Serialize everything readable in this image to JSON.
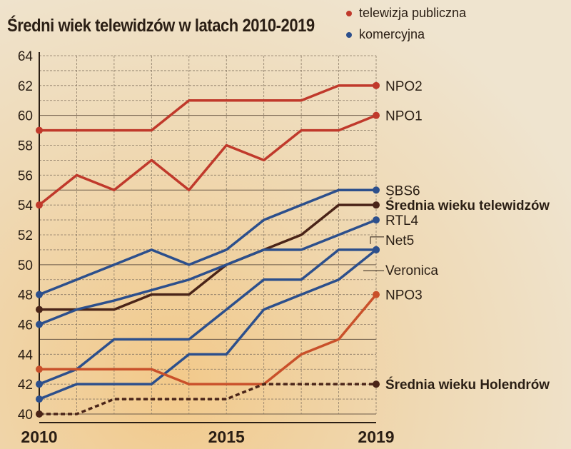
{
  "chart_data": {
    "type": "line",
    "title": "Średni wiek telewidzów w latach 2010-2019",
    "xlabel": "",
    "ylabel": "",
    "x": [
      2010,
      2011,
      2012,
      2013,
      2014,
      2015,
      2016,
      2017,
      2018,
      2019
    ],
    "x_tick_labels": [
      "2010",
      "2015",
      "2019"
    ],
    "ylim": [
      40,
      64
    ],
    "y_ticks": [
      40,
      42,
      44,
      46,
      48,
      50,
      52,
      54,
      56,
      58,
      60,
      62,
      64
    ],
    "grid": true,
    "legend": {
      "placement": "top-right",
      "entries": [
        {
          "label": "telewizja publiczna",
          "color": "#c0392b"
        },
        {
          "label": "komercyjna",
          "color": "#2c4f8c"
        }
      ]
    },
    "series": [
      {
        "name": "NPO2",
        "color": "#c0392b",
        "values": [
          59,
          59,
          59,
          59,
          61,
          61,
          61,
          61,
          62,
          62
        ]
      },
      {
        "name": "NPO1",
        "color": "#c0392b",
        "values": [
          54,
          56,
          55,
          57,
          55,
          58,
          57,
          59,
          59,
          60
        ]
      },
      {
        "name": "SBS6",
        "color": "#2c4f8c",
        "values": [
          48,
          49,
          50,
          51,
          50,
          51,
          53,
          54,
          55,
          55
        ]
      },
      {
        "name": "Średnia wieku telewidzów",
        "color": "#4a2418",
        "bold": true,
        "values": [
          47,
          47,
          47,
          48,
          48,
          50,
          51,
          52,
          54,
          54
        ]
      },
      {
        "name": "RTL4",
        "color": "#2c4f8c",
        "values": [
          46,
          47,
          47.6,
          48.3,
          49,
          50,
          51,
          51,
          52,
          53
        ]
      },
      {
        "name": "Net5",
        "color": "#2c4f8c",
        "values": [
          42,
          43,
          45,
          45,
          45,
          47,
          49,
          49,
          51,
          51
        ]
      },
      {
        "name": "Veronica",
        "color": "#2c4f8c",
        "values": [
          41,
          42,
          42,
          42,
          44,
          44,
          47,
          48,
          49,
          51
        ]
      },
      {
        "name": "NPO3",
        "color": "#c9502a",
        "values": [
          43,
          43,
          43,
          43,
          42,
          42,
          42,
          44,
          45,
          48
        ]
      },
      {
        "name": "Średnia wieku Holendrów",
        "color": "#4a2418",
        "bold": true,
        "dashed": true,
        "values": [
          40,
          40,
          41,
          41,
          41,
          41,
          42,
          42,
          42,
          42
        ]
      }
    ]
  }
}
